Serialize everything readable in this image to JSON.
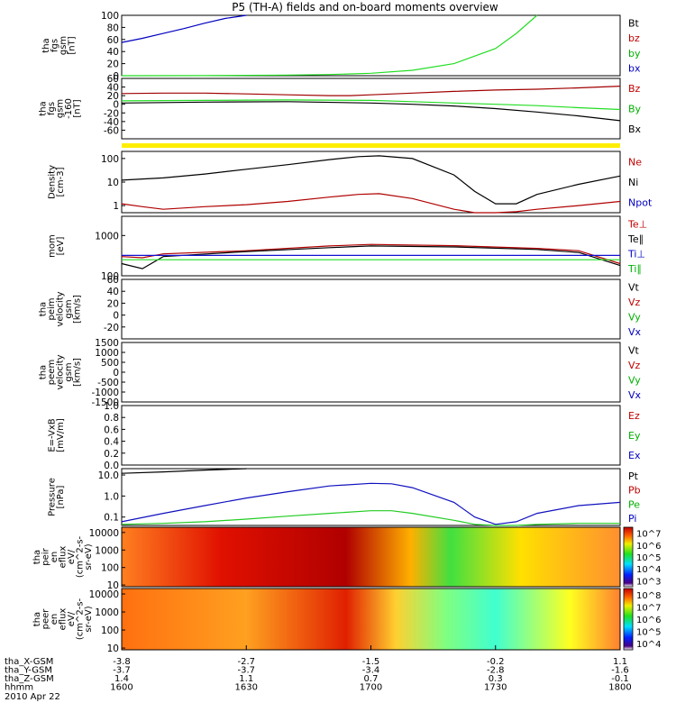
{
  "title": "P5 (TH-A) fields and on-board moments overview",
  "chart_data": {
    "type": "line",
    "title": "P5 (TH-A) fields and on-board moments overview",
    "x_axis": {
      "range": [
        "16:00",
        "18:00"
      ],
      "ticks": [
        "1600",
        "1630",
        "1700",
        "1730",
        "1800"
      ],
      "rows": [
        {
          "label": "tha_X-GSM",
          "values": [
            "-3.8",
            "-2.7",
            "-1.5",
            "-0.2",
            "1.1"
          ]
        },
        {
          "label": "tha_Y-GSM",
          "values": [
            "-3.7",
            "-3.7",
            "-3.4",
            "-2.8",
            "-1.6"
          ]
        },
        {
          "label": "tha_Z-GSM",
          "values": [
            "1.4",
            "1.1",
            "0.7",
            "0.3",
            "-0.1"
          ]
        },
        {
          "label": "hhmm",
          "values": [
            "1600",
            "1630",
            "1700",
            "1730",
            "1800"
          ]
        }
      ],
      "date": "2010 Apr 22"
    },
    "panels": [
      {
        "ylabel": [
          "tha",
          "fgs",
          "gsm",
          "[nT]"
        ],
        "ylim": [
          0,
          100
        ],
        "yticks": [
          "0",
          "20",
          "40",
          "60",
          "80",
          "100"
        ],
        "legend": [
          {
            "name": "Bt",
            "color": "#000000"
          },
          {
            "name": "bz",
            "color": "#c00000"
          },
          {
            "name": "by",
            "color": "#00b000"
          },
          {
            "name": "bx",
            "color": "#0000c0"
          }
        ],
        "series": [
          {
            "name": "bx",
            "color": "#0000c0",
            "x": [
              0,
              5,
              10,
              15,
              20,
              25,
              30
            ],
            "y": [
              55,
              62,
              70,
              78,
              87,
              95,
              102
            ]
          },
          {
            "name": "by",
            "color": "#22dd22",
            "x": [
              0,
              20,
              40,
              50,
              60,
              70,
              80,
              90,
              95,
              100
            ],
            "y": [
              0,
              0.2,
              1,
              2,
              4,
              9,
              20,
              45,
              70,
              102
            ]
          }
        ]
      },
      {
        "ylabel": [
          "tha",
          "fgs",
          "gsm",
          "-160",
          "[nT]"
        ],
        "ylim": [
          -80,
          60
        ],
        "yticks": [
          "60",
          "40",
          "20",
          "0",
          "-20",
          "-40",
          "-60"
        ],
        "legend": [
          {
            "name": "Bz",
            "color": "#c00000"
          },
          {
            "name": "By",
            "color": "#00b000"
          },
          {
            "name": "Bx",
            "color": "#000000"
          }
        ],
        "series": [
          {
            "name": "Bz",
            "color": "#a00000",
            "x": [
              0,
              10,
              20,
              30,
              40,
              50,
              55,
              60,
              70,
              80,
              90,
              100,
              110,
              120
            ],
            "y": [
              25,
              26,
              26,
              24,
              22,
              20,
              20,
              22,
              26,
              30,
              33,
              35,
              38,
              42
            ]
          },
          {
            "name": "By",
            "color": "#22dd22",
            "x": [
              0,
              20,
              40,
              60,
              70,
              80,
              90,
              100,
              110,
              120
            ],
            "y": [
              8,
              9,
              10,
              9,
              6,
              3,
              0,
              -3,
              -8,
              -12
            ]
          },
          {
            "name": "Bx",
            "color": "#000000",
            "x": [
              0,
              20,
              40,
              60,
              70,
              80,
              90,
              100,
              110,
              120
            ],
            "y": [
              3,
              5,
              6,
              3,
              0,
              -4,
              -10,
              -18,
              -27,
              -38
            ]
          }
        ]
      },
      {
        "ylabel": [
          "Density",
          "[cm-3]"
        ],
        "scale": "log",
        "ylim": [
          0.5,
          200
        ],
        "yticks": [
          "1",
          "10",
          "100"
        ],
        "legend": [
          {
            "name": "Ne",
            "color": "#c00000"
          },
          {
            "name": "Ni",
            "color": "#000000"
          },
          {
            "name": "Npot",
            "color": "#0000c0"
          }
        ],
        "series": [
          {
            "name": "Ni",
            "color": "#000000",
            "x": [
              0,
              10,
              20,
              30,
              40,
              50,
              57,
              62,
              70,
              80,
              85,
              90,
              95,
              100,
              110,
              120
            ],
            "y": [
              12,
              15,
              22,
              35,
              55,
              90,
              120,
              130,
              100,
              20,
              4,
              1.2,
              1.2,
              3,
              8,
              18
            ]
          },
          {
            "name": "Ne",
            "color": "#b00000",
            "x": [
              0,
              5,
              10,
              20,
              30,
              40,
              50,
              57,
              62,
              70,
              80,
              85,
              90,
              95,
              100,
              110,
              120
            ],
            "y": [
              1.2,
              0.9,
              0.7,
              0.9,
              1.1,
              1.5,
              2.3,
              3,
              3.2,
              2,
              0.7,
              0.5,
              0.5,
              0.55,
              0.7,
              1,
              1.5
            ]
          }
        ]
      },
      {
        "ylabel": [
          "mom",
          "[eV]"
        ],
        "scale": "log",
        "ylim": [
          100,
          3000
        ],
        "yticks": [
          "100",
          "1000"
        ],
        "legend": [
          {
            "name": "Te⊥",
            "color": "#c00000"
          },
          {
            "name": "Te∥",
            "color": "#000000"
          },
          {
            "name": "Ti⊥",
            "color": "#0000c0"
          },
          {
            "name": "Ti∥",
            "color": "#00b000"
          }
        ],
        "series": [
          {
            "name": "Te⊥",
            "color": "#b00000",
            "x": [
              0,
              5,
              10,
              30,
              50,
              60,
              80,
              100,
              110,
              120
            ],
            "y": [
              300,
              280,
              350,
              420,
              550,
              600,
              560,
              480,
              420,
              200
            ]
          },
          {
            "name": "Te∥",
            "color": "#000000",
            "x": [
              0,
              5,
              10,
              30,
              50,
              60,
              80,
              100,
              110,
              120
            ],
            "y": [
              200,
              150,
              300,
              400,
              500,
              550,
              520,
              450,
              380,
              180
            ]
          },
          {
            "name": "Ti⊥",
            "color": "#1010d0",
            "x": [
              0,
              120
            ],
            "y": [
              320,
              320
            ]
          },
          {
            "name": "Ti∥",
            "color": "#22dd22",
            "x": [
              0,
              120
            ],
            "y": [
              250,
              250
            ]
          }
        ]
      },
      {
        "ylabel": [
          "tha",
          "peim",
          "velocity",
          "gsm",
          "[km/s]"
        ],
        "ylim": [
          -40,
          60
        ],
        "yticks": [
          "60",
          "40",
          "20",
          "0",
          "-20"
        ],
        "legend": [
          {
            "name": "Vt",
            "color": "#000000"
          },
          {
            "name": "Vz",
            "color": "#c00000"
          },
          {
            "name": "Vy",
            "color": "#00b000"
          },
          {
            "name": "Vx",
            "color": "#0000c0"
          }
        ]
      },
      {
        "ylabel": [
          "tha",
          "peem",
          "velocity",
          "gsm",
          "[km/s]"
        ],
        "ylim": [
          -1500,
          1500
        ],
        "yticks": [
          "1500",
          "1000",
          "500",
          "0",
          "-500",
          "-1000",
          "-1500"
        ],
        "legend": [
          {
            "name": "Vt",
            "color": "#000000"
          },
          {
            "name": "Vz",
            "color": "#c00000"
          },
          {
            "name": "Vy",
            "color": "#00b000"
          },
          {
            "name": "Vx",
            "color": "#0000c0"
          }
        ]
      },
      {
        "ylabel": [
          "E=-VxB",
          "[mV/m]"
        ],
        "ylim": [
          0,
          1
        ],
        "yticks": [
          "0.0",
          "0.2",
          "0.4",
          "0.6",
          "0.8",
          "1.0"
        ],
        "legend": [
          {
            "name": "Ez",
            "color": "#c00000"
          },
          {
            "name": "Ey",
            "color": "#00b000"
          },
          {
            "name": "Ex",
            "color": "#0000c0"
          }
        ]
      },
      {
        "ylabel": [
          "Pressure",
          "[nPa]"
        ],
        "scale": "log",
        "ylim": [
          0.04,
          20
        ],
        "yticks": [
          "0.1",
          "1.0",
          "10.0"
        ],
        "legend": [
          {
            "name": "Pt",
            "color": "#000000"
          },
          {
            "name": "Pb",
            "color": "#c00000"
          },
          {
            "name": "Pe",
            "color": "#00b000"
          },
          {
            "name": "Pi",
            "color": "#0000c0"
          }
        ],
        "series": [
          {
            "name": "Pt",
            "color": "#000000",
            "x": [
              0,
              10,
              20,
              30
            ],
            "y": [
              12,
              14,
              17,
              20
            ]
          },
          {
            "name": "Pi",
            "color": "#1010c0",
            "x": [
              0,
              10,
              20,
              30,
              40,
              50,
              60,
              65,
              70,
              80,
              85,
              90,
              95,
              100,
              110,
              120
            ],
            "y": [
              0.06,
              0.15,
              0.35,
              0.8,
              1.6,
              3,
              4,
              3.8,
              2.5,
              0.5,
              0.1,
              0.045,
              0.06,
              0.15,
              0.35,
              0.5
            ]
          },
          {
            "name": "Pe",
            "color": "#22cc22",
            "x": [
              0,
              10,
              20,
              30,
              40,
              50,
              60,
              65,
              70,
              80,
              85,
              90,
              95,
              100,
              110,
              120
            ],
            "y": [
              0.045,
              0.05,
              0.06,
              0.08,
              0.11,
              0.15,
              0.2,
              0.2,
              0.15,
              0.07,
              0.045,
              0.04,
              0.04,
              0.045,
              0.05,
              0.05
            ]
          }
        ]
      },
      {
        "type": "heatmap",
        "ylabel": [
          "tha",
          "peir",
          "en",
          "eflux",
          "eV/",
          "(cm^2-s-",
          "sr-eV)"
        ],
        "scale": "log",
        "ylim": [
          8,
          20000
        ],
        "yticks": [
          "10",
          "100",
          "1000",
          "10000"
        ],
        "colorbar": {
          "ticks": [
            "10^3",
            "10^4",
            "10^5",
            "10^6",
            "10^7"
          ]
        }
      },
      {
        "type": "heatmap",
        "ylabel": [
          "tha",
          "peer",
          "en",
          "eflux",
          "eV/",
          "(cm^2-s-",
          "sr-eV)"
        ],
        "scale": "log",
        "ylim": [
          8,
          20000
        ],
        "yticks": [
          "10",
          "100",
          "1000",
          "10000"
        ],
        "colorbar": {
          "ticks": [
            "10^4",
            "10^5",
            "10^6",
            "10^7",
            "10^8"
          ]
        }
      }
    ]
  }
}
